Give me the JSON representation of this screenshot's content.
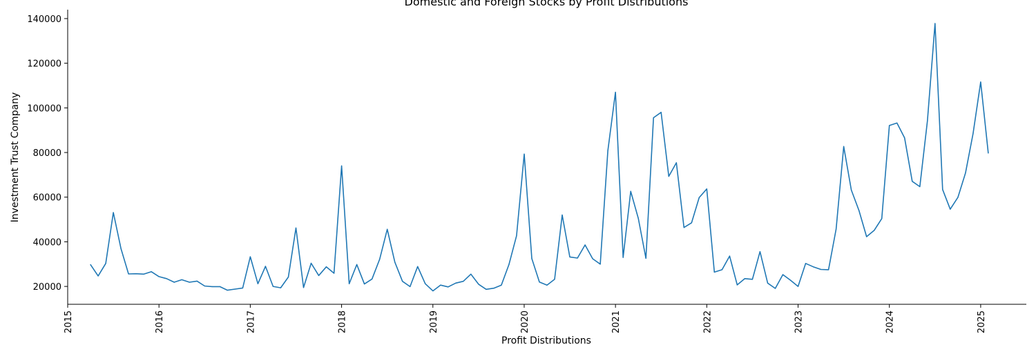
{
  "chart_data": {
    "type": "line",
    "title": "Domestic and Foreign Stocks by Profit Distributions",
    "xlabel": "Profit Distributions",
    "ylabel": "Investment Trust Company",
    "x_ticks": [
      "2015",
      "2016",
      "2017",
      "2018",
      "2019",
      "2020",
      "2021",
      "2022",
      "2023",
      "2024",
      "2025"
    ],
    "y_ticks": [
      20000,
      40000,
      60000,
      80000,
      100000,
      120000,
      140000
    ],
    "xlim": [
      "2015-01-01",
      "2025-07-01"
    ],
    "ylim": [
      12000,
      144000
    ],
    "grid": false,
    "series": [
      {
        "color": "#1f77b4",
        "x": [
          "2015-04",
          "2015-05",
          "2015-06",
          "2015-07",
          "2015-08",
          "2015-09",
          "2015-10",
          "2015-11",
          "2015-12",
          "2016-01",
          "2016-02",
          "2016-03",
          "2016-04",
          "2016-05",
          "2016-06",
          "2016-07",
          "2016-08",
          "2016-09",
          "2016-10",
          "2016-11",
          "2016-12",
          "2017-01",
          "2017-02",
          "2017-03",
          "2017-04",
          "2017-05",
          "2017-06",
          "2017-07",
          "2017-08",
          "2017-09",
          "2017-10",
          "2017-11",
          "2017-12",
          "2018-01",
          "2018-02",
          "2018-03",
          "2018-04",
          "2018-05",
          "2018-06",
          "2018-07",
          "2018-08",
          "2018-09",
          "2018-10",
          "2018-11",
          "2018-12",
          "2019-01",
          "2019-02",
          "2019-03",
          "2019-04",
          "2019-05",
          "2019-06",
          "2019-07",
          "2019-08",
          "2019-09",
          "2019-10",
          "2019-11",
          "2019-12",
          "2020-01",
          "2020-02",
          "2020-03",
          "2020-04",
          "2020-05",
          "2020-06",
          "2020-07",
          "2020-08",
          "2020-09",
          "2020-10",
          "2020-11",
          "2020-12",
          "2021-01",
          "2021-02",
          "2021-03",
          "2021-04",
          "2021-05",
          "2021-06",
          "2021-07",
          "2021-08",
          "2021-09",
          "2021-10",
          "2021-11",
          "2021-12",
          "2022-01",
          "2022-02",
          "2022-03",
          "2022-04",
          "2022-05",
          "2022-06",
          "2022-07",
          "2022-08",
          "2022-09",
          "2022-10",
          "2022-11",
          "2022-12",
          "2023-01",
          "2023-02",
          "2023-03",
          "2023-04",
          "2023-05",
          "2023-06",
          "2023-07",
          "2023-08",
          "2023-09",
          "2023-10",
          "2023-11",
          "2023-12",
          "2024-01",
          "2024-02",
          "2024-03",
          "2024-04",
          "2024-05",
          "2024-06",
          "2024-07",
          "2024-08",
          "2024-09",
          "2024-10",
          "2024-11",
          "2024-12",
          "2025-01",
          "2025-02"
        ],
        "y": [
          29800,
          24700,
          30300,
          53100,
          37000,
          25600,
          25700,
          25500,
          26600,
          24400,
          23500,
          21900,
          23000,
          21900,
          22400,
          20200,
          19900,
          19900,
          18300,
          18800,
          19300,
          33300,
          21200,
          29000,
          20000,
          19400,
          24200,
          46200,
          19500,
          30400,
          24900,
          28800,
          25900,
          74000,
          21200,
          29800,
          21100,
          23300,
          32200,
          45600,
          30900,
          22300,
          19900,
          28900,
          21200,
          18000,
          20600,
          19800,
          21500,
          22300,
          25500,
          21000,
          18700,
          19200,
          20600,
          29800,
          42700,
          79300,
          32500,
          22000,
          20600,
          23200,
          52000,
          33200,
          32700,
          38600,
          32400,
          30000,
          80800,
          107000,
          33000,
          62600,
          50500,
          32600,
          95600,
          98000,
          69300,
          75400,
          46400,
          48500,
          59800,
          63700,
          26400,
          27500,
          33600,
          20700,
          23500,
          23200,
          35600,
          21500,
          19100,
          25300,
          22800,
          20000,
          30300,
          28800,
          27600,
          27500,
          45700,
          82700,
          63200,
          54000,
          42300,
          45100,
          50400,
          92100,
          93200,
          86600,
          67100,
          64700,
          94200,
          137800,
          63400,
          54600,
          59900,
          70800,
          88500,
          111600,
          79700
        ]
      }
    ]
  }
}
